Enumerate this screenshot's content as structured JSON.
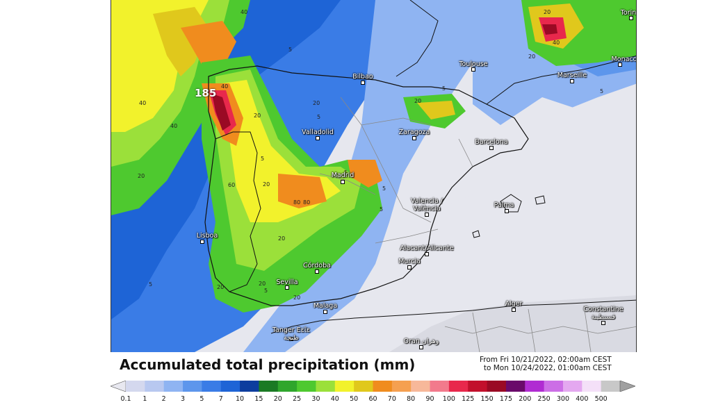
{
  "title": "Accumulated total precipitation (mm)",
  "period": {
    "from": "From Fri 10/21/2022, 02:00am CEST",
    "to": "to Mon 10/24/2022, 01:00am CEST"
  },
  "cities": [
    {
      "id": "bilbao",
      "name": "Bilbao"
    },
    {
      "id": "toulouse",
      "name": "Toulouse"
    },
    {
      "id": "torino",
      "name": "Torin"
    },
    {
      "id": "monaco",
      "name": "Monaco"
    },
    {
      "id": "marseille",
      "name": "Marseille"
    },
    {
      "id": "valladolid",
      "name": "Valladolid"
    },
    {
      "id": "zaragoza",
      "name": "Zaragoza"
    },
    {
      "id": "barcelona",
      "name": "Barcelona"
    },
    {
      "id": "madrid",
      "name": "Madrid"
    },
    {
      "id": "valencia",
      "name": "Valencia /\nValència"
    },
    {
      "id": "palma",
      "name": "Palma"
    },
    {
      "id": "lisboa",
      "name": "Lisboa"
    },
    {
      "id": "alacant",
      "name": "Alacant/Alicante"
    },
    {
      "id": "murcia",
      "name": "Murcia"
    },
    {
      "id": "cordoba",
      "name": "Córdoba"
    },
    {
      "id": "sevilla",
      "name": "Sevilla"
    },
    {
      "id": "malaga",
      "name": "Malaga"
    },
    {
      "id": "alger",
      "name": "Alger"
    },
    {
      "id": "constantine",
      "name": "Constantine\nقسنطينة"
    },
    {
      "id": "tanger",
      "name": "Tanger Εεῖε\nطنجة"
    },
    {
      "id": "oran",
      "name": "Oran وهران"
    }
  ],
  "max_value": "185",
  "legend": {
    "ticks": [
      "0.1",
      "1",
      "2",
      "3",
      "5",
      "7",
      "10",
      "15",
      "20",
      "25",
      "30",
      "40",
      "50",
      "60",
      "70",
      "80",
      "90",
      "100",
      "125",
      "150",
      "175",
      "200",
      "250",
      "300",
      "400",
      "500"
    ],
    "colors": [
      "#d4d8ee",
      "#b8c8f0",
      "#8fb4f2",
      "#5d96ec",
      "#3a7ce6",
      "#1e64d6",
      "#0d3d9e",
      "#1a7a24",
      "#2fa62c",
      "#4ec92f",
      "#9be03a",
      "#f2f22c",
      "#e0c81c",
      "#f08c1e",
      "#f5a050",
      "#f7b89a",
      "#f27a8c",
      "#e8284c",
      "#c2102c",
      "#9a0a24",
      "#6a0a6a",
      "#b02cd2",
      "#cc6ee6",
      "#e4a8f0",
      "#f4e0f8",
      "#c8c8c8"
    ],
    "under_color": "#e8e8f0",
    "over_color": "#a0a0a0"
  },
  "value_labels": [
    "40",
    "40",
    "40",
    "40",
    "20",
    "5",
    "5",
    "5",
    "20",
    "20",
    "20",
    "60",
    "80",
    "80",
    "20",
    "20",
    "20",
    "20",
    "5",
    "5",
    "5",
    "5",
    "5",
    "5",
    "20",
    "20",
    "40",
    "20",
    "5"
  ]
}
